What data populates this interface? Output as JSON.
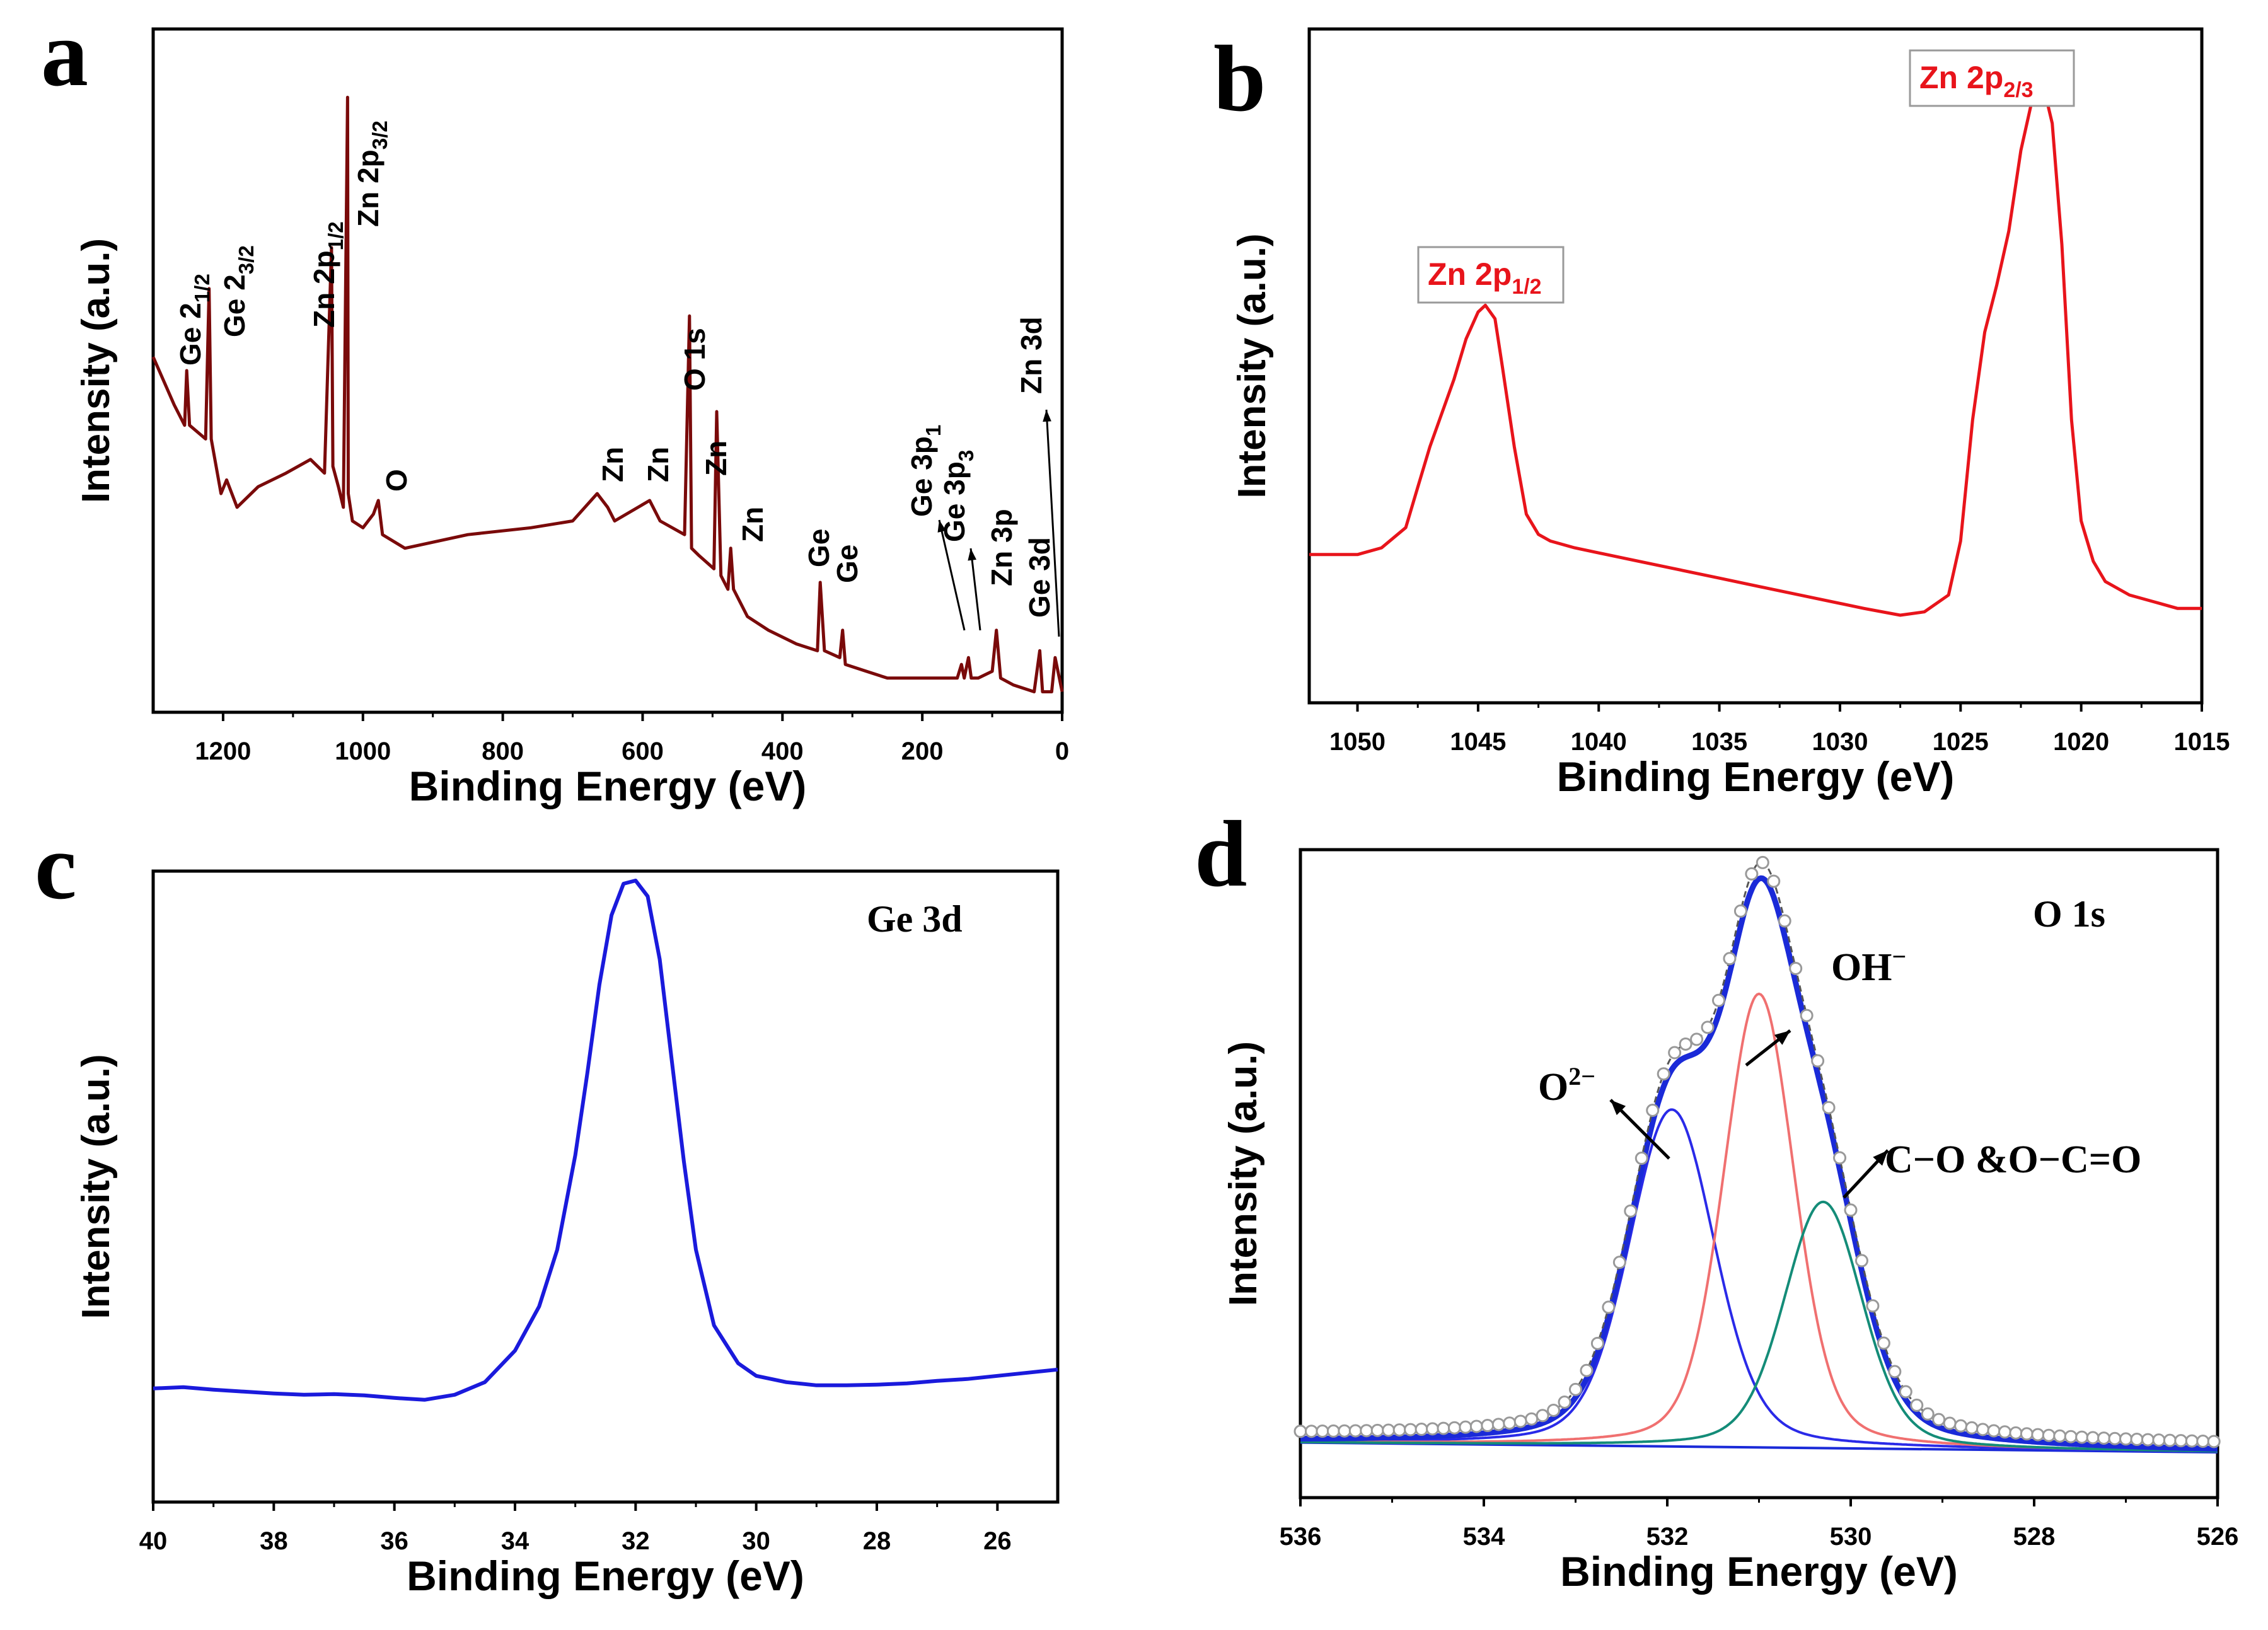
{
  "figure": {
    "colors": {
      "axis": "#000000",
      "a_line": "#7a0a0a",
      "b_line": "#e8141b",
      "c_line": "#1a1adc",
      "d_envelope": "#1a2ad8",
      "d_o2": "#2a2ae8",
      "d_oh": "#f07070",
      "d_co": "#148c78",
      "d_circle": "#999999",
      "d_dashed": "#555555"
    }
  },
  "chart_data": [
    {
      "panel": "a",
      "type": "line",
      "xlabel": "Binding Energy (eV)",
      "ylabel": "Intensity (a.u.)",
      "xlim": [
        1300,
        0
      ],
      "ylim": [
        0,
        100
      ],
      "xticks": [
        1200,
        1000,
        800,
        600,
        400,
        200,
        0
      ],
      "x": [
        1300,
        1270,
        1255,
        1252,
        1248,
        1225,
        1220,
        1217,
        1203,
        1195,
        1180,
        1150,
        1110,
        1075,
        1055,
        1045,
        1043,
        1035,
        1028,
        1022,
        1021,
        1015,
        1000,
        985,
        978,
        972,
        940,
        850,
        760,
        700,
        665,
        650,
        640,
        590,
        585,
        575,
        540,
        533,
        530,
        520,
        498,
        494,
        488,
        478,
        474,
        470,
        450,
        420,
        380,
        350,
        346,
        340,
        318,
        314,
        310,
        280,
        250,
        220,
        190,
        160,
        150,
        144,
        140,
        134,
        130,
        120,
        100,
        94,
        88,
        70,
        40,
        32,
        28,
        15,
        10,
        0
      ],
      "y": [
        52,
        45,
        42,
        50,
        42,
        40,
        62,
        40,
        32,
        34,
        30,
        33,
        35,
        37,
        35,
        68,
        36,
        33,
        30,
        90,
        32,
        28,
        27,
        29,
        31,
        26,
        24,
        26,
        27,
        28,
        32,
        30,
        28,
        31,
        30,
        28,
        26,
        58,
        24,
        23,
        21,
        44,
        20,
        18,
        24,
        18,
        14,
        12,
        10,
        9,
        19,
        9,
        8,
        12,
        7,
        6,
        5,
        5,
        5,
        5,
        5,
        7,
        5,
        8,
        5,
        5,
        6,
        12,
        5,
        4,
        3,
        9,
        3,
        3,
        8,
        3
      ],
      "peak_labels": [
        {
          "text": "Ge 2",
          "sub": "1/2",
          "x": 1250
        },
        {
          "text": "Ge 2",
          "sub": "3/2",
          "x": 1220
        },
        {
          "text": "Zn 2p",
          "sub": "1/2",
          "x": 1045
        },
        {
          "text": "Zn 2p",
          "sub": "3/2",
          "x": 1022
        },
        {
          "text": "O",
          "sub": "",
          "x": 975
        },
        {
          "text": "O 1s",
          "sub": "",
          "x": 533
        },
        {
          "text": "Zn",
          "sub": "",
          "x": 650
        },
        {
          "text": "Zn",
          "sub": "",
          "x": 585
        },
        {
          "text": "Zn",
          "sub": "",
          "x": 494
        },
        {
          "text": "Zn",
          "sub": "",
          "x": 470
        },
        {
          "text": "Ge",
          "sub": "",
          "x": 346
        },
        {
          "text": "Ge",
          "sub": "",
          "x": 314
        },
        {
          "text": "Ge 3p",
          "sub": "1",
          "x": 144
        },
        {
          "text": "Ge 3p",
          "sub": "3",
          "x": 130
        },
        {
          "text": "Zn 3p",
          "sub": "",
          "x": 94
        },
        {
          "text": "Ge 3d",
          "sub": "",
          "x": 32
        },
        {
          "text": "Zn 3d",
          "sub": "",
          "x": 10
        }
      ]
    },
    {
      "panel": "b",
      "type": "line",
      "xlabel": "Binding Energy (eV)",
      "ylabel": "Intensity (a.u.)",
      "xlim": [
        1052,
        1015
      ],
      "ylim": [
        0,
        100
      ],
      "xticks": [
        1050,
        1045,
        1040,
        1035,
        1030,
        1025,
        1020,
        1015
      ],
      "x": [
        1052,
        1050,
        1049,
        1048,
        1047.5,
        1047,
        1046.5,
        1046,
        1045.5,
        1045,
        1044.7,
        1044.3,
        1044,
        1043.5,
        1043,
        1042.5,
        1042,
        1041,
        1039,
        1037,
        1035,
        1033,
        1031,
        1029,
        1027.5,
        1026.5,
        1025.5,
        1025,
        1024.5,
        1024,
        1023.5,
        1023,
        1022.5,
        1022,
        1021.6,
        1021.2,
        1020.8,
        1020.4,
        1020,
        1019.5,
        1019,
        1018,
        1017,
        1016,
        1015
      ],
      "y": [
        22,
        22,
        23,
        26,
        32,
        38,
        43,
        48,
        54,
        58,
        59,
        57,
        50,
        38,
        28,
        25,
        24,
        23,
        21.5,
        20,
        18.5,
        17,
        15.5,
        14,
        13,
        13.5,
        16,
        24,
        42,
        55,
        62,
        70,
        82,
        90,
        92,
        86,
        68,
        42,
        27,
        21,
        18,
        16,
        15,
        14,
        14
      ],
      "peak_labels": [
        {
          "text": "Zn 2p",
          "sub": "1/2",
          "x": 1045
        },
        {
          "text": "Zn 2p",
          "sub": "2/3",
          "x": 1021.6
        }
      ]
    },
    {
      "panel": "c",
      "type": "line",
      "xlabel": "Binding Energy (eV)",
      "ylabel": "Intensity (a.u.)",
      "annotation": "Ge 3d",
      "xlim": [
        40,
        25
      ],
      "ylim": [
        0,
        100
      ],
      "xticks": [
        40,
        38,
        36,
        34,
        32,
        30,
        28,
        26
      ],
      "x": [
        40,
        39.5,
        39,
        38.5,
        38,
        37.5,
        37,
        36.5,
        36,
        35.5,
        35,
        34.5,
        34,
        33.6,
        33.3,
        33,
        32.8,
        32.6,
        32.4,
        32.2,
        32,
        31.8,
        31.6,
        31.4,
        31.2,
        31,
        30.7,
        30.3,
        30,
        29.5,
        29,
        28.5,
        28,
        27.5,
        27,
        26.5,
        26,
        25.5,
        25
      ],
      "y": [
        18,
        18.2,
        17.8,
        17.5,
        17.2,
        17,
        17.1,
        16.9,
        16.5,
        16.2,
        17,
        19,
        24,
        31,
        40,
        55,
        68,
        82,
        93,
        98,
        98.5,
        96,
        86,
        70,
        54,
        40,
        28,
        22,
        20,
        19,
        18.5,
        18.5,
        18.6,
        18.8,
        19.2,
        19.5,
        20,
        20.5,
        21
      ]
    },
    {
      "panel": "d",
      "type": "line",
      "xlabel": "Binding Energy (eV)",
      "ylabel": "Intensity (a.u.)",
      "annotation": "O 1s",
      "xlim": [
        536,
        526
      ],
      "ylim": [
        0,
        100
      ],
      "xticks": [
        536,
        534,
        532,
        530,
        528,
        526
      ],
      "baseline": {
        "x": [
          536,
          526
        ],
        "y": [
          8.5,
          7
        ]
      },
      "series": [
        {
          "name": "O2-",
          "label": "O",
          "sup": "2−",
          "center": 531.95,
          "height": 52,
          "width": 0.46
        },
        {
          "name": "OH-",
          "label": "OH",
          "sup": "−",
          "center": 531.0,
          "height": 70,
          "width": 0.38
        },
        {
          "name": "C-O & O-C=O",
          "label": "C−O &O−C=O",
          "sup": "",
          "center": 530.3,
          "height": 38,
          "width": 0.42
        }
      ],
      "envelope_peak": {
        "x": 531.1,
        "y": 98
      }
    }
  ],
  "panel_labels": [
    "a",
    "b",
    "c",
    "d"
  ]
}
